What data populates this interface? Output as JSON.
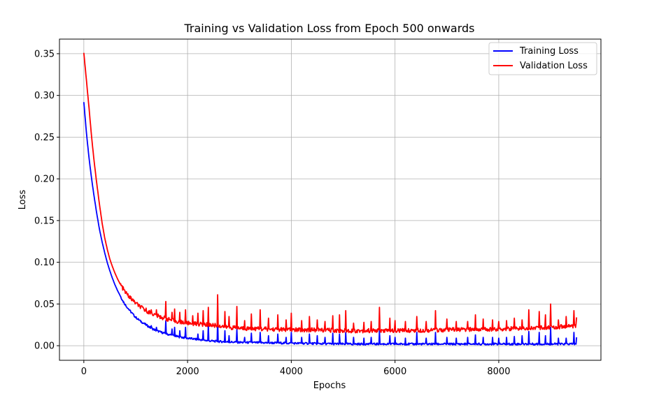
{
  "chart_data": {
    "type": "line",
    "title": "Training vs Validation Loss from Epoch 500 onwards",
    "xlabel": "Epochs",
    "ylabel": "Loss",
    "xlim": [
      -470,
      9970
    ],
    "ylim": [
      -0.0175,
      0.3675
    ],
    "xticks": [
      0,
      2000,
      4000,
      6000,
      8000
    ],
    "yticks": [
      0.0,
      0.05,
      0.1,
      0.15,
      0.2,
      0.25,
      0.3,
      0.35
    ],
    "ytick_labels": [
      "0.00",
      "0.05",
      "0.10",
      "0.15",
      "0.20",
      "0.25",
      "0.30",
      "0.35"
    ],
    "grid": true,
    "legend_position": "top-right",
    "series": [
      {
        "name": "Training Loss",
        "color": "#0000ff",
        "points": [
          [
            0,
            0.292
          ],
          [
            50,
            0.255
          ],
          [
            100,
            0.225
          ],
          [
            150,
            0.2
          ],
          [
            200,
            0.178
          ],
          [
            250,
            0.158
          ],
          [
            300,
            0.14
          ],
          [
            350,
            0.125
          ],
          [
            400,
            0.112
          ],
          [
            450,
            0.1
          ],
          [
            500,
            0.09
          ],
          [
            550,
            0.081
          ],
          [
            600,
            0.073
          ],
          [
            650,
            0.066
          ],
          [
            700,
            0.06
          ],
          [
            750,
            0.054
          ],
          [
            800,
            0.049
          ],
          [
            900,
            0.041
          ],
          [
            1000,
            0.034
          ],
          [
            1100,
            0.029
          ],
          [
            1200,
            0.025
          ],
          [
            1300,
            0.021
          ],
          [
            1400,
            0.018
          ],
          [
            1500,
            0.016
          ],
          [
            1600,
            0.014
          ],
          [
            1800,
            0.011
          ],
          [
            2000,
            0.009
          ],
          [
            2200,
            0.0075
          ],
          [
            2400,
            0.006
          ],
          [
            2600,
            0.005
          ],
          [
            2800,
            0.0045
          ],
          [
            3000,
            0.004
          ],
          [
            3500,
            0.0035
          ],
          [
            4000,
            0.003
          ],
          [
            4500,
            0.0025
          ],
          [
            5000,
            0.002
          ],
          [
            6000,
            0.002
          ],
          [
            7000,
            0.002
          ],
          [
            8000,
            0.002
          ],
          [
            9000,
            0.002
          ],
          [
            9500,
            0.002
          ]
        ],
        "spikes": [
          [
            1300,
            0.024
          ],
          [
            1400,
            0.022
          ],
          [
            1580,
            0.03
          ],
          [
            1700,
            0.02
          ],
          [
            1750,
            0.022
          ],
          [
            1850,
            0.018
          ],
          [
            1960,
            0.022
          ],
          [
            2200,
            0.014
          ],
          [
            2300,
            0.018
          ],
          [
            2400,
            0.026
          ],
          [
            2580,
            0.034
          ],
          [
            2720,
            0.018
          ],
          [
            2800,
            0.012
          ],
          [
            2950,
            0.02
          ],
          [
            3100,
            0.01
          ],
          [
            3230,
            0.015
          ],
          [
            3400,
            0.016
          ],
          [
            3560,
            0.012
          ],
          [
            3740,
            0.014
          ],
          [
            3900,
            0.01
          ],
          [
            4000,
            0.016
          ],
          [
            4200,
            0.01
          ],
          [
            4350,
            0.014
          ],
          [
            4500,
            0.012
          ],
          [
            4650,
            0.01
          ],
          [
            4800,
            0.015
          ],
          [
            4930,
            0.014
          ],
          [
            5050,
            0.016
          ],
          [
            5200,
            0.01
          ],
          [
            5400,
            0.009
          ],
          [
            5540,
            0.01
          ],
          [
            5700,
            0.018
          ],
          [
            5900,
            0.012
          ],
          [
            6000,
            0.01
          ],
          [
            6200,
            0.009
          ],
          [
            6420,
            0.016
          ],
          [
            6600,
            0.009
          ],
          [
            6780,
            0.016
          ],
          [
            7000,
            0.01
          ],
          [
            7180,
            0.009
          ],
          [
            7400,
            0.01
          ],
          [
            7550,
            0.013
          ],
          [
            7700,
            0.01
          ],
          [
            7880,
            0.01
          ],
          [
            8000,
            0.009
          ],
          [
            8150,
            0.01
          ],
          [
            8300,
            0.011
          ],
          [
            8450,
            0.012
          ],
          [
            8580,
            0.017
          ],
          [
            8780,
            0.016
          ],
          [
            8900,
            0.012
          ],
          [
            9000,
            0.022
          ],
          [
            9150,
            0.009
          ],
          [
            9300,
            0.009
          ],
          [
            9450,
            0.016
          ],
          [
            9500,
            0.01
          ]
        ]
      },
      {
        "name": "Validation Loss",
        "color": "#ff0000",
        "points": [
          [
            0,
            0.351
          ],
          [
            50,
            0.318
          ],
          [
            100,
            0.285
          ],
          [
            150,
            0.25
          ],
          [
            200,
            0.22
          ],
          [
            250,
            0.194
          ],
          [
            300,
            0.17
          ],
          [
            350,
            0.148
          ],
          [
            400,
            0.13
          ],
          [
            450,
            0.116
          ],
          [
            500,
            0.104
          ],
          [
            550,
            0.095
          ],
          [
            600,
            0.087
          ],
          [
            650,
            0.08
          ],
          [
            700,
            0.074
          ],
          [
            750,
            0.069
          ],
          [
            800,
            0.064
          ],
          [
            900,
            0.057
          ],
          [
            1000,
            0.051
          ],
          [
            1100,
            0.046
          ],
          [
            1200,
            0.042
          ],
          [
            1300,
            0.039
          ],
          [
            1400,
            0.036
          ],
          [
            1500,
            0.034
          ],
          [
            1600,
            0.032
          ],
          [
            1800,
            0.029
          ],
          [
            2000,
            0.027
          ],
          [
            2200,
            0.026
          ],
          [
            2400,
            0.025
          ],
          [
            2600,
            0.024
          ],
          [
            2800,
            0.022
          ],
          [
            3000,
            0.021
          ],
          [
            3500,
            0.02
          ],
          [
            4000,
            0.019
          ],
          [
            4500,
            0.019
          ],
          [
            5000,
            0.018
          ],
          [
            6000,
            0.018
          ],
          [
            7000,
            0.019
          ],
          [
            8000,
            0.02
          ],
          [
            9000,
            0.022
          ],
          [
            9500,
            0.024
          ]
        ],
        "spikes": [
          [
            1200,
            0.045
          ],
          [
            1300,
            0.043
          ],
          [
            1400,
            0.043
          ],
          [
            1580,
            0.053
          ],
          [
            1700,
            0.04
          ],
          [
            1750,
            0.044
          ],
          [
            1850,
            0.04
          ],
          [
            1960,
            0.043
          ],
          [
            2100,
            0.036
          ],
          [
            2200,
            0.039
          ],
          [
            2300,
            0.042
          ],
          [
            2400,
            0.046
          ],
          [
            2580,
            0.061
          ],
          [
            2720,
            0.041
          ],
          [
            2800,
            0.035
          ],
          [
            2950,
            0.047
          ],
          [
            3100,
            0.03
          ],
          [
            3230,
            0.038
          ],
          [
            3400,
            0.043
          ],
          [
            3560,
            0.033
          ],
          [
            3740,
            0.037
          ],
          [
            3900,
            0.031
          ],
          [
            4000,
            0.039
          ],
          [
            4200,
            0.03
          ],
          [
            4350,
            0.035
          ],
          [
            4500,
            0.031
          ],
          [
            4650,
            0.029
          ],
          [
            4800,
            0.036
          ],
          [
            4930,
            0.037
          ],
          [
            5050,
            0.042
          ],
          [
            5200,
            0.027
          ],
          [
            5400,
            0.028
          ],
          [
            5540,
            0.029
          ],
          [
            5700,
            0.046
          ],
          [
            5900,
            0.033
          ],
          [
            6000,
            0.03
          ],
          [
            6200,
            0.029
          ],
          [
            6420,
            0.035
          ],
          [
            6600,
            0.029
          ],
          [
            6780,
            0.042
          ],
          [
            7000,
            0.032
          ],
          [
            7180,
            0.029
          ],
          [
            7400,
            0.029
          ],
          [
            7550,
            0.037
          ],
          [
            7700,
            0.032
          ],
          [
            7880,
            0.031
          ],
          [
            8000,
            0.029
          ],
          [
            8150,
            0.03
          ],
          [
            8300,
            0.033
          ],
          [
            8450,
            0.031
          ],
          [
            8580,
            0.043
          ],
          [
            8780,
            0.041
          ],
          [
            8900,
            0.037
          ],
          [
            9000,
            0.05
          ],
          [
            9150,
            0.031
          ],
          [
            9300,
            0.035
          ],
          [
            9450,
            0.042
          ],
          [
            9500,
            0.034
          ]
        ]
      }
    ]
  }
}
